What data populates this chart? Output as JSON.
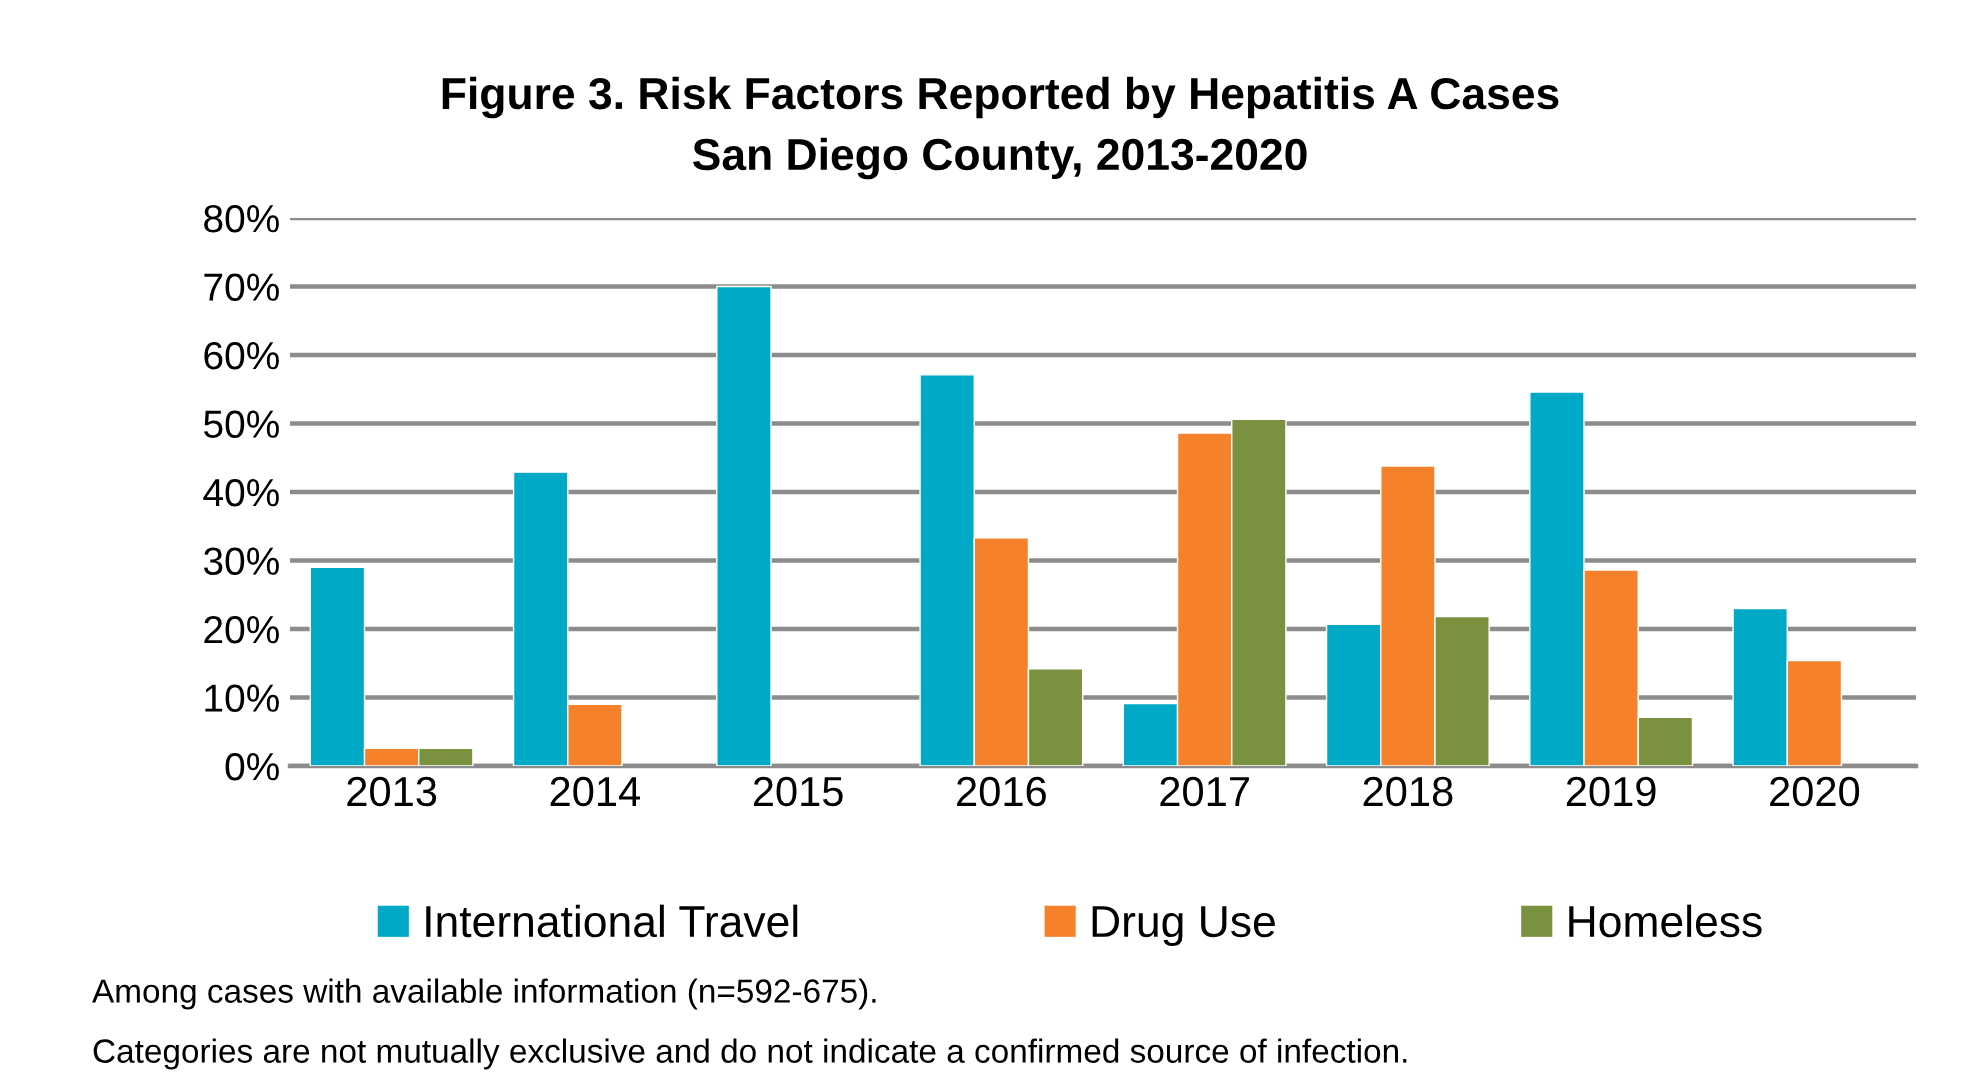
{
  "chart_data": {
    "type": "bar",
    "title": "Figure 3. Risk Factors Reported by Hepatitis A Cases\nSan Diego County, 2013-2020",
    "categories": [
      "2013",
      "2014",
      "2015",
      "2016",
      "2017",
      "2018",
      "2019",
      "2020"
    ],
    "series": [
      {
        "name": "International Travel",
        "color": "#00a9c5",
        "values": [
          29.0,
          42.9,
          70.0,
          57.1,
          9.1,
          20.7,
          54.6,
          23.0
        ]
      },
      {
        "name": "Drug Use",
        "color": "#f5822a",
        "values": [
          2.6,
          9.0,
          null,
          33.3,
          48.6,
          43.8,
          28.6,
          15.4
        ]
      },
      {
        "name": "Homeless",
        "color": "#7a9140",
        "values": [
          2.6,
          null,
          null,
          14.2,
          50.6,
          21.8,
          7.1,
          null
        ]
      }
    ],
    "ylim": [
      0,
      80
    ],
    "yticks": [
      {
        "value": 0,
        "label": "0%"
      },
      {
        "value": 10,
        "label": "10%"
      },
      {
        "value": 20,
        "label": "20%"
      },
      {
        "value": 30,
        "label": "30%"
      },
      {
        "value": 40,
        "label": "40%"
      },
      {
        "value": 50,
        "label": "50%"
      },
      {
        "value": 60,
        "label": "60%"
      },
      {
        "value": 70,
        "label": "70%"
      },
      {
        "value": 80,
        "label": "80%"
      }
    ],
    "grid": "y",
    "legend": "bottom",
    "annotations": [
      "Among cases with available information (n=592-675).",
      "Categories are not mutually exclusive and do not indicate a confirmed source of infection."
    ]
  }
}
